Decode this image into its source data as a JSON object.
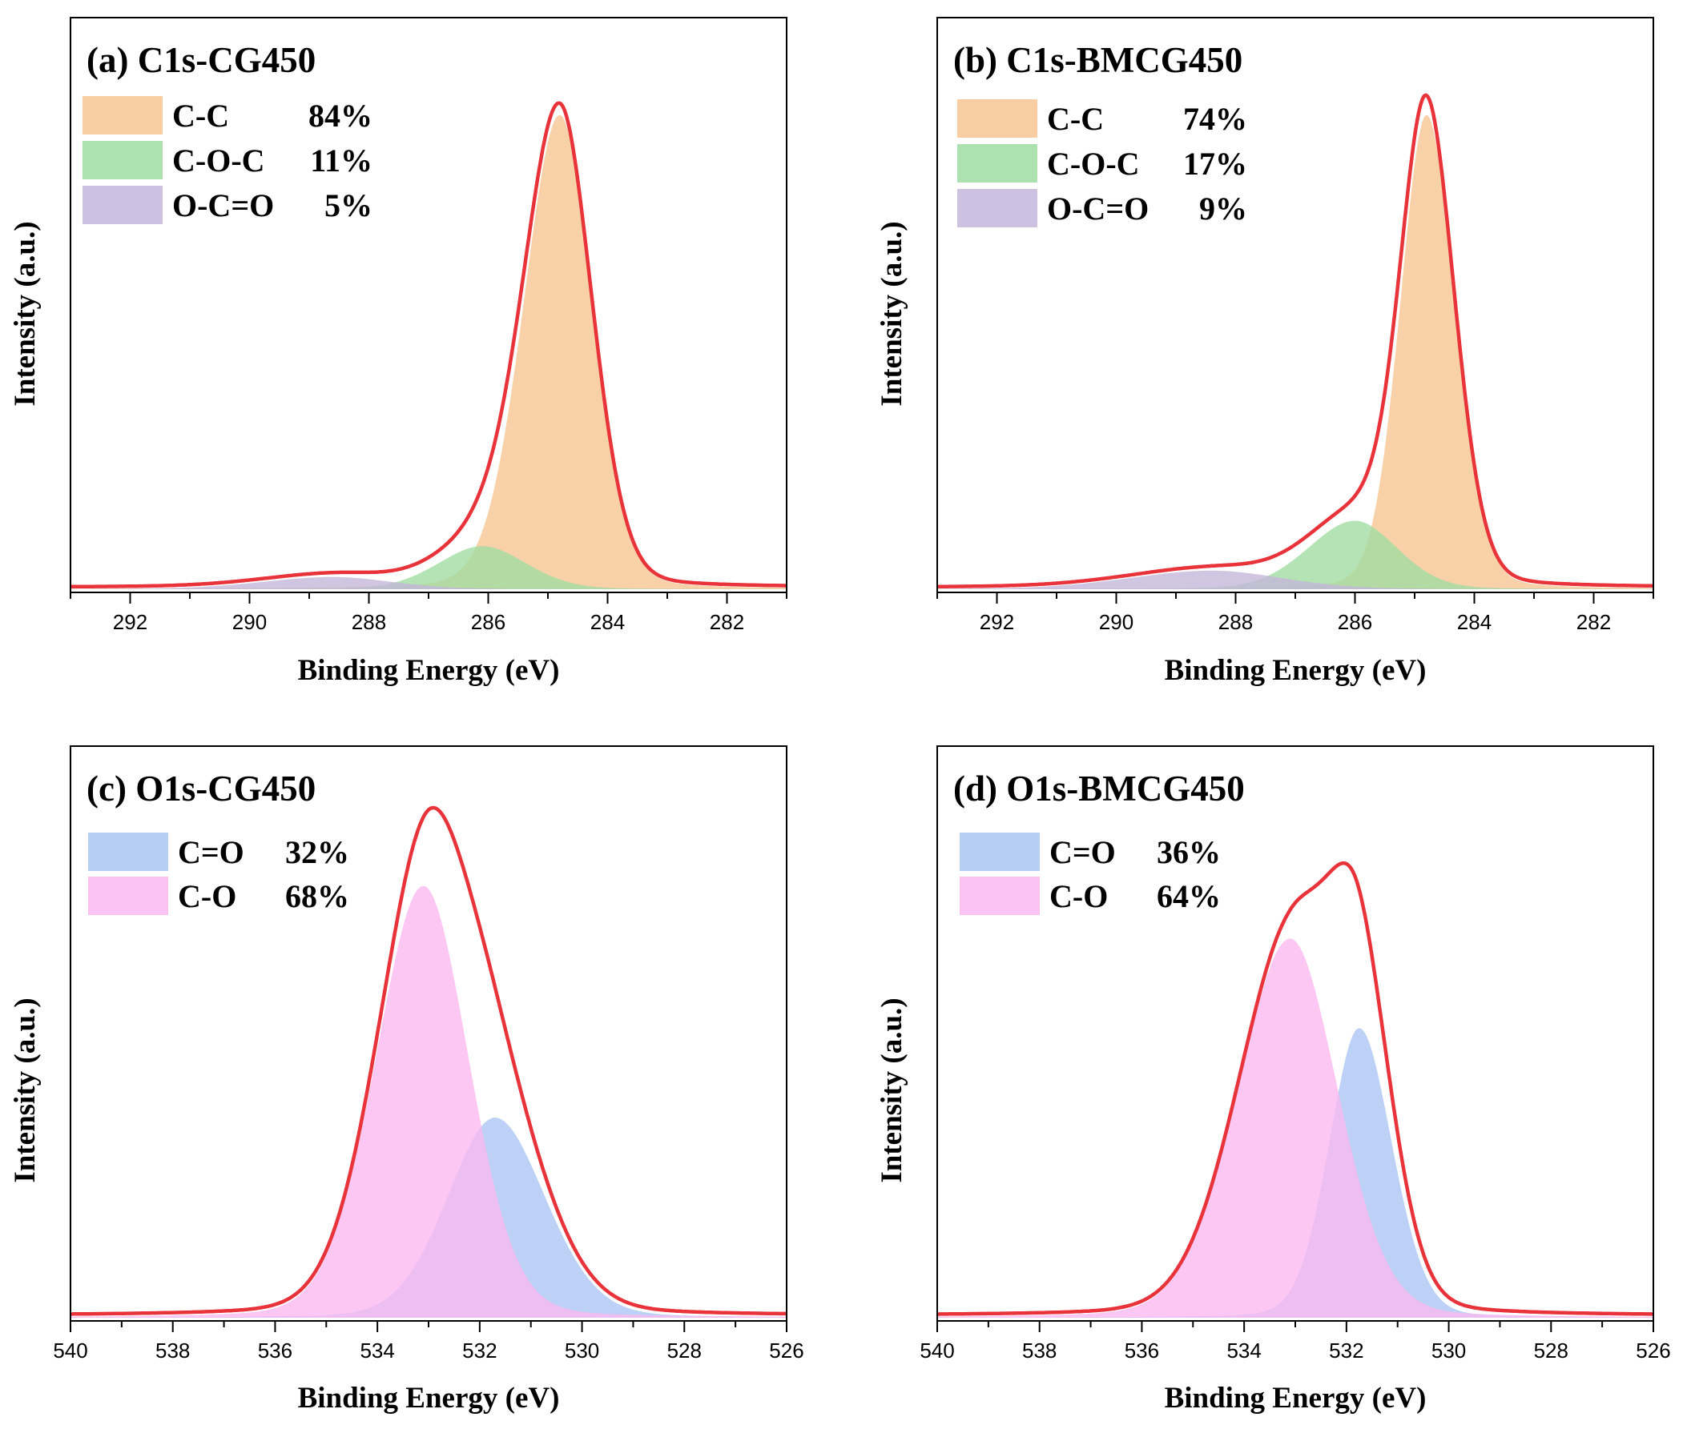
{
  "chart_data": [
    {
      "type": "area",
      "title": "(a) C1s-CG450",
      "xlabel": "Binding Energy (eV)",
      "ylabel": "Intensity (a.u.)",
      "xlim": [
        293,
        281
      ],
      "ylim": [
        0,
        1.12
      ],
      "xticks": [
        292,
        290,
        288,
        286,
        284,
        282
      ],
      "xtick_labels": [
        "292",
        "290",
        "288",
        "286",
        "284",
        "282"
      ],
      "envelope_color": "#e8333a",
      "legend": [
        {
          "name": "C-C",
          "value": "84%",
          "color": "#f6c491"
        },
        {
          "name": "C-O-C",
          "value": "11%",
          "color": "#9fdca2"
        },
        {
          "name": "O-C=O",
          "value": "5%",
          "color": "#c3b6da"
        }
      ],
      "series": [
        {
          "name": "C-C",
          "center": 284.8,
          "height": 0.97,
          "sigma_left": 0.62,
          "sigma_right": 0.55
        },
        {
          "name": "C-O-C",
          "center": 286.1,
          "height": 0.088,
          "sigma_left": 0.75,
          "sigma_right": 0.75
        },
        {
          "name": "O-C=O",
          "center": 288.6,
          "height": 0.025,
          "sigma_left": 1.2,
          "sigma_right": 1.0
        }
      ]
    },
    {
      "type": "area",
      "title": "(b) C1s-BMCG450",
      "xlabel": "Binding Energy (eV)",
      "ylabel": "Intensity (a.u.)",
      "xlim": [
        293,
        281
      ],
      "ylim": [
        0,
        1.12
      ],
      "xticks": [
        292,
        290,
        288,
        286,
        284,
        282
      ],
      "xtick_labels": [
        "292",
        "290",
        "288",
        "286",
        "284",
        "282"
      ],
      "envelope_color": "#e8333a",
      "legend": [
        {
          "name": "C-C",
          "value": "74%",
          "color": "#f6c491"
        },
        {
          "name": "C-O-C",
          "value": "17%",
          "color": "#9fdca2"
        },
        {
          "name": "O-C=O",
          "value": "9%",
          "color": "#c3b6da"
        }
      ],
      "series": [
        {
          "name": "C-C",
          "center": 284.8,
          "height": 0.97,
          "sigma_left": 0.45,
          "sigma_right": 0.48
        },
        {
          "name": "C-O-C",
          "center": 286.0,
          "height": 0.14,
          "sigma_left": 0.8,
          "sigma_right": 0.72
        },
        {
          "name": "O-C=O",
          "center": 288.4,
          "height": 0.038,
          "sigma_left": 1.4,
          "sigma_right": 1.2
        }
      ]
    },
    {
      "type": "area",
      "title": "(c) O1s-CG450",
      "xlabel": "Binding Energy (eV)",
      "ylabel": "Intensity (a.u.)",
      "xlim": [
        540,
        526
      ],
      "ylim": [
        0,
        1.04
      ],
      "xticks": [
        540,
        538,
        536,
        534,
        532,
        530,
        528,
        526
      ],
      "xtick_labels": [
        "540",
        "538",
        "536",
        "534",
        "532",
        "530",
        "528",
        "526"
      ],
      "envelope_color": "#e8333a",
      "legend": [
        {
          "name": "C=O",
          "value": "32%",
          "color": "#a9c4f2"
        },
        {
          "name": "C-O",
          "value": "68%",
          "color": "#fbb8f0"
        }
      ],
      "series": [
        {
          "name": "C=O",
          "center": 531.7,
          "height": 0.38,
          "sigma_left": 0.95,
          "sigma_right": 1.0
        },
        {
          "name": "C-O",
          "center": 533.1,
          "height": 0.82,
          "sigma_left": 0.95,
          "sigma_right": 0.9
        }
      ]
    },
    {
      "type": "area",
      "title": "(d) O1s-BMCG450",
      "xlabel": "Binding Energy (eV)",
      "ylabel": "Intensity (a.u.)",
      "xlim": [
        540,
        526
      ],
      "ylim": [
        0,
        1.04
      ],
      "xticks": [
        540,
        538,
        536,
        534,
        532,
        530,
        528,
        526
      ],
      "xtick_labels": [
        "540",
        "538",
        "536",
        "534",
        "532",
        "530",
        "528",
        "526"
      ],
      "envelope_color": "#e8333a",
      "legend": [
        {
          "name": "C=O",
          "value": "36%",
          "color": "#a9c4f2"
        },
        {
          "name": "C-O",
          "value": "64%",
          "color": "#fbb8f0"
        }
      ],
      "series": [
        {
          "name": "C=O",
          "center": 531.75,
          "height": 0.55,
          "sigma_left": 0.6,
          "sigma_right": 0.65
        },
        {
          "name": "C-O",
          "center": 533.1,
          "height": 0.72,
          "sigma_left": 1.05,
          "sigma_right": 0.95
        }
      ]
    }
  ]
}
